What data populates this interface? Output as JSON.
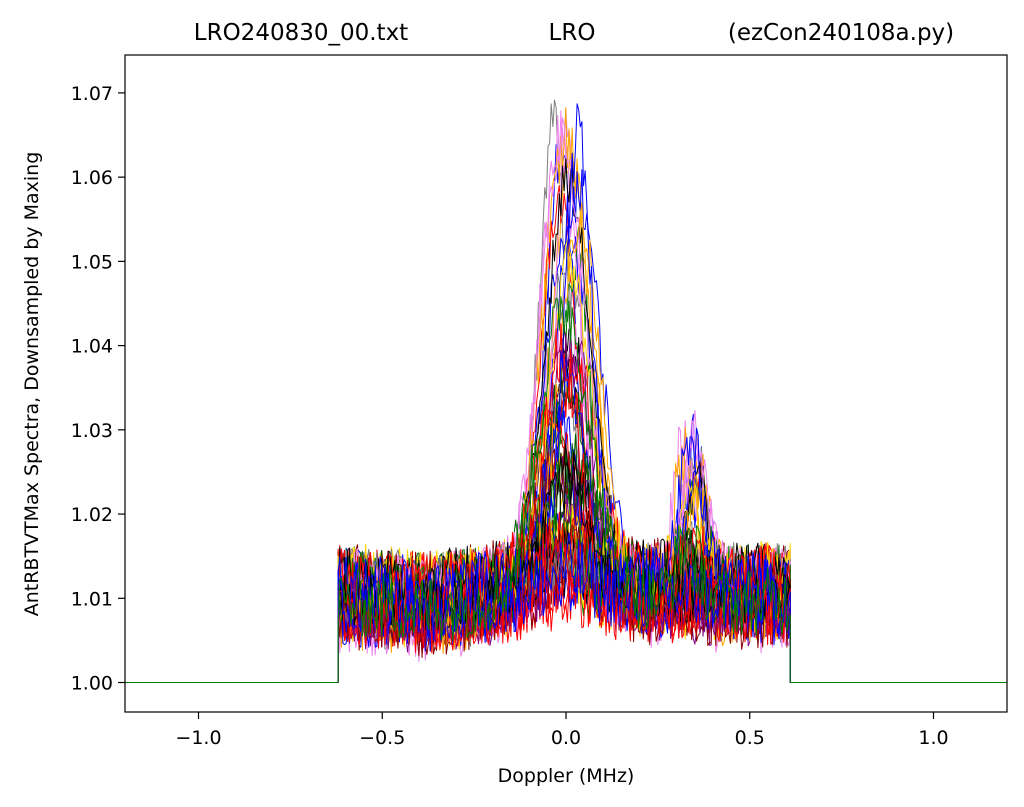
{
  "chart_data": {
    "type": "line",
    "title_parts": [
      "LRO240830_00.txt",
      "LRO",
      "(ezCon240108a.py)"
    ],
    "xlabel": "Doppler (MHz)",
    "ylabel": "AntRBTVTMax Spectra, Downsampled by Maxing",
    "xlim": [
      -1.2,
      1.2
    ],
    "ylim": [
      0.9965,
      1.0745
    ],
    "x_ticks": [
      -1.0,
      -0.5,
      0.0,
      0.5,
      1.0
    ],
    "x_tick_labels": [
      "−1.0",
      "−0.5",
      "0.0",
      "0.5",
      "1.0"
    ],
    "y_ticks": [
      1.0,
      1.01,
      1.02,
      1.03,
      1.04,
      1.05,
      1.06,
      1.07
    ],
    "y_tick_labels": [
      "1.00",
      "1.01",
      "1.02",
      "1.03",
      "1.04",
      "1.05",
      "1.06",
      "1.07"
    ],
    "band_edges": [
      -0.62,
      0.61
    ],
    "baseline": 1.0,
    "background_profile": {
      "x": [
        -0.62,
        -0.4,
        -0.2,
        0.0,
        0.2,
        0.4,
        0.61
      ],
      "y": [
        1.0105,
        1.0095,
        1.0105,
        1.0115,
        1.011,
        1.0105,
        1.0105
      ]
    },
    "main_peak": {
      "center_x": 0.0,
      "max_y": 1.0705
    },
    "secondary_peak": {
      "center_x": 0.34,
      "max_y": 1.033
    },
    "series_colors": [
      "#000000",
      "#ff0000",
      "#0000ff",
      "#008000",
      "#ffd700",
      "#808080",
      "#ee82ee",
      "#8b0000",
      "#ffa500",
      "#800080",
      "#006400",
      "#000000",
      "#ff0000",
      "#0000ff"
    ],
    "series_count": 60,
    "grid": false,
    "legend": "none"
  }
}
